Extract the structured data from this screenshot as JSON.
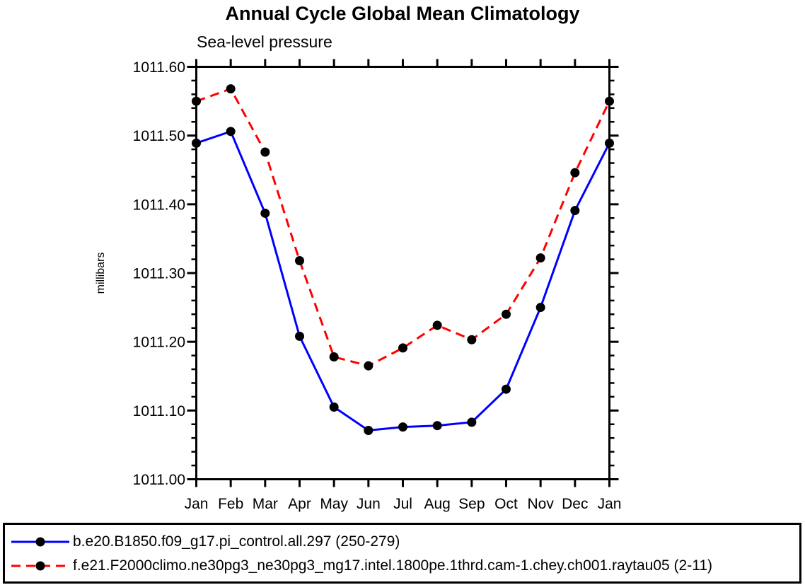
{
  "header": {
    "title": "Annual Cycle Global Mean Climatology",
    "subtitle": "Sea-level pressure"
  },
  "chart_data": {
    "type": "line",
    "title": "Annual Cycle Global Mean Climatology",
    "subtitle": "Sea-level pressure",
    "xlabel": "",
    "ylabel": "millibars",
    "x_categories": [
      "Jan",
      "Feb",
      "Mar",
      "Apr",
      "May",
      "Jun",
      "Jul",
      "Aug",
      "Sep",
      "Oct",
      "Nov",
      "Dec",
      "Jan"
    ],
    "ylim": [
      1011.0,
      1011.6
    ],
    "y_major_step": 0.1,
    "y_minor_step": 0.02,
    "y_tick_labels": [
      "1011.00",
      "1011.10",
      "1011.20",
      "1011.30",
      "1011.40",
      "1011.50",
      "1011.60"
    ],
    "grid": false,
    "legend_position": "bottom-box",
    "axis_color": "#000000",
    "marker_color": "#000000",
    "series": [
      {
        "name": "b.e20.B1850.f09_g17.pi_control.all.297 (250-279)",
        "color": "#0000ff",
        "dash": "solid",
        "values": [
          1011.489,
          1011.506,
          1011.387,
          1011.208,
          1011.105,
          1011.071,
          1011.076,
          1011.078,
          1011.083,
          1011.131,
          1011.25,
          1011.391,
          1011.489
        ]
      },
      {
        "name": "f.e21.F2000climo.ne30pg3_ne30pg3_mg17.intel.1800pe.1thrd.cam-1.chey.ch001.raytau05 (2-11)",
        "color": "#ff0000",
        "dash": "dashed",
        "values": [
          1011.55,
          1011.568,
          1011.476,
          1011.318,
          1011.178,
          1011.165,
          1011.191,
          1011.224,
          1011.203,
          1011.24,
          1011.322,
          1011.446,
          1011.55
        ]
      }
    ]
  }
}
